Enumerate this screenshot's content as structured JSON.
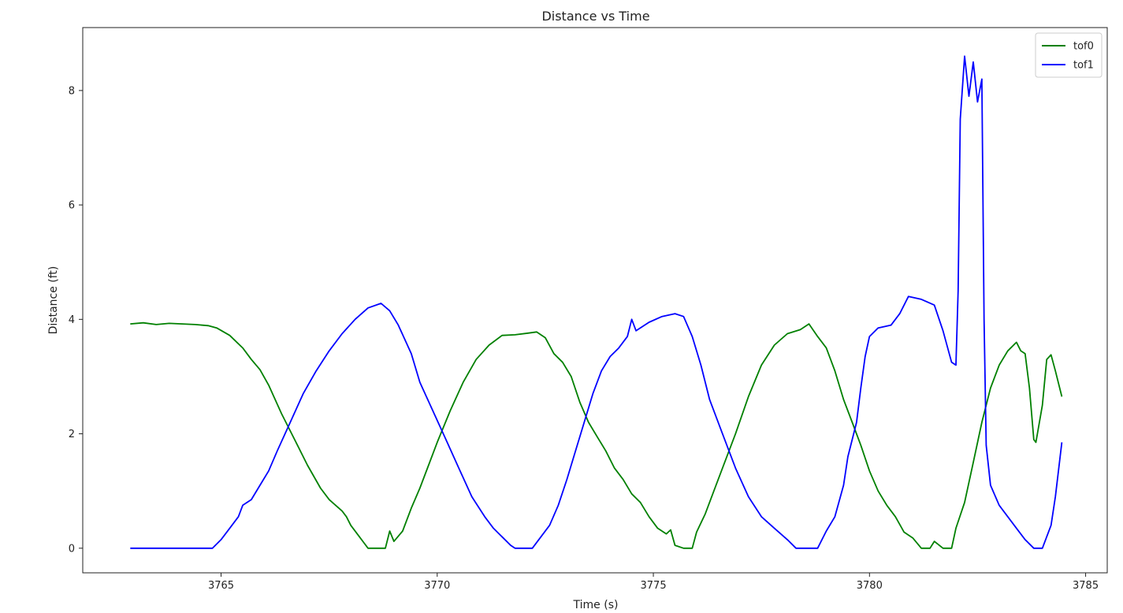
{
  "chart_data": {
    "type": "line",
    "title": "Distance vs Time",
    "xlabel": "Time (s)",
    "ylabel": "Distance (ft)",
    "xlim": [
      3761.8,
      3785.5
    ],
    "ylim": [
      -0.43,
      9.1
    ],
    "xticks": [
      3765,
      3770,
      3775,
      3780,
      3785
    ],
    "yticks": [
      0,
      2,
      4,
      6,
      8
    ],
    "grid": false,
    "legend_position": "top-right",
    "series": [
      {
        "name": "tof0",
        "color": "#008000",
        "points": [
          [
            3762.9,
            3.92
          ],
          [
            3763.2,
            3.94
          ],
          [
            3763.5,
            3.91
          ],
          [
            3763.8,
            3.93
          ],
          [
            3764.1,
            3.92
          ],
          [
            3764.4,
            3.91
          ],
          [
            3764.7,
            3.89
          ],
          [
            3764.9,
            3.85
          ],
          [
            3765.2,
            3.72
          ],
          [
            3765.5,
            3.5
          ],
          [
            3765.7,
            3.3
          ],
          [
            3765.9,
            3.12
          ],
          [
            3766.1,
            2.85
          ],
          [
            3766.4,
            2.35
          ],
          [
            3766.6,
            2.05
          ],
          [
            3766.8,
            1.75
          ],
          [
            3767.0,
            1.45
          ],
          [
            3767.3,
            1.05
          ],
          [
            3767.5,
            0.85
          ],
          [
            3767.8,
            0.65
          ],
          [
            3767.9,
            0.55
          ],
          [
            3768.0,
            0.4
          ],
          [
            3768.2,
            0.2
          ],
          [
            3768.3,
            0.1
          ],
          [
            3768.4,
            0.0
          ],
          [
            3768.6,
            0.0
          ],
          [
            3768.8,
            0.0
          ],
          [
            3768.9,
            0.3
          ],
          [
            3769.0,
            0.12
          ],
          [
            3769.2,
            0.3
          ],
          [
            3769.4,
            0.7
          ],
          [
            3769.6,
            1.05
          ],
          [
            3769.8,
            1.45
          ],
          [
            3770.0,
            1.85
          ],
          [
            3770.3,
            2.4
          ],
          [
            3770.6,
            2.9
          ],
          [
            3770.9,
            3.3
          ],
          [
            3771.2,
            3.55
          ],
          [
            3771.5,
            3.72
          ],
          [
            3771.8,
            3.73
          ],
          [
            3772.1,
            3.76
          ],
          [
            3772.3,
            3.78
          ],
          [
            3772.5,
            3.68
          ],
          [
            3772.7,
            3.4
          ],
          [
            3772.9,
            3.25
          ],
          [
            3773.1,
            3.0
          ],
          [
            3773.3,
            2.55
          ],
          [
            3773.5,
            2.2
          ],
          [
            3773.7,
            1.95
          ],
          [
            3773.9,
            1.7
          ],
          [
            3774.1,
            1.4
          ],
          [
            3774.3,
            1.2
          ],
          [
            3774.5,
            0.95
          ],
          [
            3774.7,
            0.8
          ],
          [
            3774.9,
            0.55
          ],
          [
            3775.1,
            0.35
          ],
          [
            3775.3,
            0.25
          ],
          [
            3775.4,
            0.32
          ],
          [
            3775.5,
            0.05
          ],
          [
            3775.7,
            0.0
          ],
          [
            3775.9,
            0.0
          ],
          [
            3776.0,
            0.28
          ],
          [
            3776.2,
            0.6
          ],
          [
            3776.4,
            1.0
          ],
          [
            3776.6,
            1.4
          ],
          [
            3776.9,
            2.0
          ],
          [
            3777.2,
            2.65
          ],
          [
            3777.5,
            3.2
          ],
          [
            3777.8,
            3.55
          ],
          [
            3778.1,
            3.75
          ],
          [
            3778.4,
            3.82
          ],
          [
            3778.6,
            3.92
          ],
          [
            3778.8,
            3.7
          ],
          [
            3779.0,
            3.5
          ],
          [
            3779.2,
            3.1
          ],
          [
            3779.4,
            2.6
          ],
          [
            3779.6,
            2.2
          ],
          [
            3779.8,
            1.8
          ],
          [
            3780.0,
            1.35
          ],
          [
            3780.2,
            1.0
          ],
          [
            3780.4,
            0.75
          ],
          [
            3780.6,
            0.55
          ],
          [
            3780.8,
            0.28
          ],
          [
            3781.0,
            0.18
          ],
          [
            3781.2,
            0.0
          ],
          [
            3781.4,
            0.0
          ],
          [
            3781.5,
            0.12
          ],
          [
            3781.7,
            0.0
          ],
          [
            3781.9,
            0.0
          ],
          [
            3782.0,
            0.35
          ],
          [
            3782.2,
            0.8
          ],
          [
            3782.4,
            1.5
          ],
          [
            3782.6,
            2.2
          ],
          [
            3782.8,
            2.8
          ],
          [
            3783.0,
            3.2
          ],
          [
            3783.2,
            3.45
          ],
          [
            3783.4,
            3.6
          ],
          [
            3783.5,
            3.45
          ],
          [
            3783.6,
            3.4
          ],
          [
            3783.7,
            2.8
          ],
          [
            3783.8,
            1.9
          ],
          [
            3783.85,
            1.85
          ],
          [
            3784.0,
            2.5
          ],
          [
            3784.1,
            3.3
          ],
          [
            3784.2,
            3.38
          ],
          [
            3784.3,
            3.1
          ],
          [
            3784.45,
            2.65
          ]
        ]
      },
      {
        "name": "tof1",
        "color": "#0000ff",
        "points": [
          [
            3762.9,
            0.0
          ],
          [
            3763.5,
            0.0
          ],
          [
            3764.0,
            0.0
          ],
          [
            3764.5,
            0.0
          ],
          [
            3764.8,
            0.0
          ],
          [
            3765.0,
            0.15
          ],
          [
            3765.2,
            0.35
          ],
          [
            3765.4,
            0.55
          ],
          [
            3765.5,
            0.75
          ],
          [
            3765.7,
            0.85
          ],
          [
            3765.9,
            1.1
          ],
          [
            3766.1,
            1.35
          ],
          [
            3766.3,
            1.7
          ],
          [
            3766.6,
            2.2
          ],
          [
            3766.9,
            2.7
          ],
          [
            3767.2,
            3.1
          ],
          [
            3767.5,
            3.45
          ],
          [
            3767.8,
            3.75
          ],
          [
            3768.1,
            4.0
          ],
          [
            3768.4,
            4.2
          ],
          [
            3768.7,
            4.28
          ],
          [
            3768.9,
            4.15
          ],
          [
            3769.1,
            3.9
          ],
          [
            3769.4,
            3.4
          ],
          [
            3769.6,
            2.9
          ],
          [
            3769.9,
            2.4
          ],
          [
            3770.2,
            1.9
          ],
          [
            3770.5,
            1.4
          ],
          [
            3770.8,
            0.9
          ],
          [
            3771.1,
            0.55
          ],
          [
            3771.3,
            0.35
          ],
          [
            3771.5,
            0.2
          ],
          [
            3771.7,
            0.05
          ],
          [
            3771.8,
            0.0
          ],
          [
            3772.2,
            0.0
          ],
          [
            3772.4,
            0.2
          ],
          [
            3772.6,
            0.4
          ],
          [
            3772.8,
            0.75
          ],
          [
            3773.0,
            1.2
          ],
          [
            3773.2,
            1.7
          ],
          [
            3773.4,
            2.2
          ],
          [
            3773.6,
            2.7
          ],
          [
            3773.8,
            3.1
          ],
          [
            3774.0,
            3.35
          ],
          [
            3774.2,
            3.5
          ],
          [
            3774.4,
            3.7
          ],
          [
            3774.5,
            4.0
          ],
          [
            3774.6,
            3.8
          ],
          [
            3774.9,
            3.95
          ],
          [
            3775.2,
            4.05
          ],
          [
            3775.5,
            4.1
          ],
          [
            3775.7,
            4.05
          ],
          [
            3775.9,
            3.7
          ],
          [
            3776.1,
            3.2
          ],
          [
            3776.3,
            2.6
          ],
          [
            3776.6,
            2.0
          ],
          [
            3776.9,
            1.4
          ],
          [
            3777.2,
            0.9
          ],
          [
            3777.5,
            0.55
          ],
          [
            3777.8,
            0.35
          ],
          [
            3778.1,
            0.15
          ],
          [
            3778.3,
            0.0
          ],
          [
            3778.8,
            0.0
          ],
          [
            3779.0,
            0.3
          ],
          [
            3779.2,
            0.55
          ],
          [
            3779.4,
            1.1
          ],
          [
            3779.5,
            1.6
          ],
          [
            3779.7,
            2.2
          ],
          [
            3779.8,
            2.8
          ],
          [
            3779.9,
            3.35
          ],
          [
            3780.0,
            3.7
          ],
          [
            3780.2,
            3.85
          ],
          [
            3780.5,
            3.9
          ],
          [
            3780.7,
            4.1
          ],
          [
            3780.9,
            4.4
          ],
          [
            3781.2,
            4.35
          ],
          [
            3781.5,
            4.25
          ],
          [
            3781.7,
            3.8
          ],
          [
            3781.9,
            3.25
          ],
          [
            3782.0,
            3.2
          ],
          [
            3782.05,
            4.5
          ],
          [
            3782.1,
            7.5
          ],
          [
            3782.2,
            8.6
          ],
          [
            3782.3,
            7.9
          ],
          [
            3782.4,
            8.5
          ],
          [
            3782.5,
            7.8
          ],
          [
            3782.6,
            8.2
          ],
          [
            3782.65,
            4.0
          ],
          [
            3782.7,
            1.8
          ],
          [
            3782.8,
            1.1
          ],
          [
            3783.0,
            0.75
          ],
          [
            3783.2,
            0.55
          ],
          [
            3783.4,
            0.35
          ],
          [
            3783.6,
            0.15
          ],
          [
            3783.8,
            0.0
          ],
          [
            3784.0,
            0.0
          ],
          [
            3784.2,
            0.4
          ],
          [
            3784.3,
            0.9
          ],
          [
            3784.45,
            1.85
          ]
        ]
      }
    ]
  }
}
